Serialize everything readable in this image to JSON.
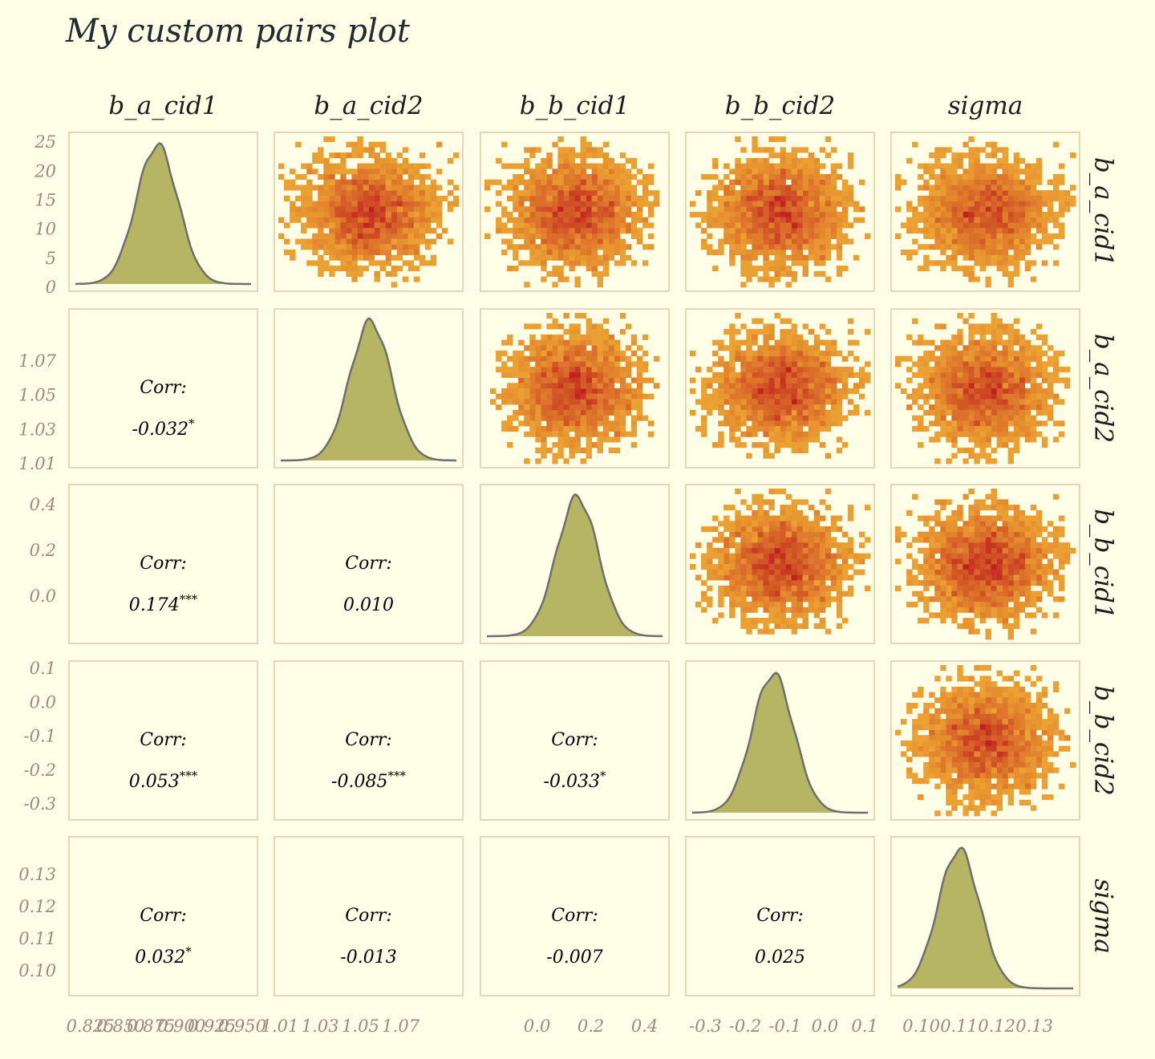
{
  "chart_data": {
    "type": "pairs",
    "title": "My custom pairs plot",
    "variables": [
      "b_a_cid1",
      "b_a_cid2",
      "b_b_cid1",
      "b_b_cid2",
      "sigma"
    ],
    "colors": {
      "background": "#fffee6",
      "panel_border": "#e6d7bc",
      "density_fill": "#b6b563",
      "density_line": "#6e6e6e",
      "hex_low": "#f0ae34",
      "hex_high": "#c0201e",
      "tick_text": "#9b8c79"
    },
    "diagonal": {
      "type": "density",
      "y_tick_labels_first_panel": [
        "0",
        "5",
        "10",
        "15",
        "20",
        "25"
      ],
      "density_peak": [
        25,
        1.078,
        0.42,
        0.11,
        0.138
      ],
      "density_modes": [
        0.88,
        1.055,
        0.15,
        -0.13,
        0.11
      ]
    },
    "upper": {
      "type": "2d-histogram",
      "centers_x": [
        [
          null,
          1.052,
          0.145,
          -0.13,
          0.111
        ],
        [
          null,
          null,
          0.155,
          -0.135,
          0.11
        ],
        [
          null,
          null,
          null,
          -0.14,
          0.11
        ],
        [
          null,
          null,
          null,
          null,
          0.11
        ]
      ],
      "centers_y": [
        [
          null,
          0.88,
          0.88,
          0.88,
          0.88
        ],
        [
          null,
          null,
          1.05,
          1.05,
          1.05
        ],
        [
          null,
          null,
          null,
          0.15,
          0.15
        ],
        [
          null,
          null,
          null,
          null,
          -0.12
        ]
      ],
      "spread_x": [
        [
          null,
          0.013,
          0.09,
          0.09,
          0.0065
        ],
        [
          null,
          null,
          0.09,
          0.09,
          0.0065
        ],
        [
          null,
          null,
          null,
          0.09,
          0.0065
        ],
        [
          null,
          null,
          null,
          null,
          0.0065
        ]
      ],
      "spread_y": [
        [
          null,
          0.028,
          0.028,
          0.028,
          0.028
        ],
        [
          null,
          null,
          0.01,
          0.01,
          0.01
        ],
        [
          null,
          null,
          null,
          0.09,
          0.09
        ],
        [
          null,
          null,
          null,
          null,
          0.07
        ]
      ]
    },
    "lower": {
      "type": "correlation",
      "label": "Corr:",
      "cells": [
        {
          "row": 1,
          "col": 0,
          "value": "-0.032",
          "stars": "*"
        },
        {
          "row": 2,
          "col": 0,
          "value": "0.174",
          "stars": "***"
        },
        {
          "row": 2,
          "col": 1,
          "value": "0.010",
          "stars": ""
        },
        {
          "row": 3,
          "col": 0,
          "value": "0.053",
          "stars": "***"
        },
        {
          "row": 3,
          "col": 1,
          "value": "-0.085",
          "stars": "***"
        },
        {
          "row": 3,
          "col": 2,
          "value": "-0.033",
          "stars": "*"
        },
        {
          "row": 4,
          "col": 0,
          "value": "0.032",
          "stars": "*"
        },
        {
          "row": 4,
          "col": 1,
          "value": "-0.013",
          "stars": ""
        },
        {
          "row": 4,
          "col": 2,
          "value": "-0.007",
          "stars": ""
        },
        {
          "row": 4,
          "col": 3,
          "value": "0.025",
          "stars": ""
        }
      ]
    },
    "axes": [
      {
        "name": "b_a_cid1",
        "range": [
          0.812,
          0.958
        ],
        "x_ticks": [
          "0.825",
          "0.850",
          "0.875",
          "0.900",
          "0.925",
          "0.950"
        ],
        "x_tick_values": [
          0.825,
          0.85,
          0.875,
          0.9,
          0.925,
          0.95
        ],
        "y_ticks": []
      },
      {
        "name": "b_a_cid2",
        "range": [
          1.01,
          1.098
        ],
        "x_ticks": [
          "1.01",
          "1.03",
          "1.05",
          "1.07"
        ],
        "x_tick_values": [
          1.01,
          1.03,
          1.05,
          1.07
        ],
        "y_ticks": [
          "1.01",
          "1.03",
          "1.05",
          "1.07"
        ],
        "y_tick_values": [
          1.01,
          1.03,
          1.05,
          1.07
        ]
      },
      {
        "name": "b_b_cid1",
        "range": [
          -0.19,
          0.47
        ],
        "x_ticks": [
          "0.0",
          "0.2",
          "0.4"
        ],
        "x_tick_values": [
          0.0,
          0.2,
          0.4
        ],
        "y_ticks": [
          "0.0",
          "0.2",
          "0.4"
        ],
        "y_tick_values": [
          0.0,
          0.2,
          0.4
        ]
      },
      {
        "name": "b_b_cid2",
        "range": [
          -0.335,
          0.11
        ],
        "x_ticks": [
          "-0.3",
          "-0.2",
          "-0.1",
          "0.0",
          "0.1"
        ],
        "x_tick_values": [
          -0.3,
          -0.2,
          -0.1,
          0.0,
          0.1
        ],
        "y_ticks": [
          "-0.3",
          "-0.2",
          "-0.1",
          "0.0",
          "0.1"
        ],
        "y_tick_values": [
          -0.3,
          -0.2,
          -0.1,
          0.0,
          0.1
        ]
      },
      {
        "name": "sigma",
        "range": [
          0.0935,
          0.1405
        ],
        "x_ticks": [
          "0.10",
          "0.11",
          "0.12",
          "0.13"
        ],
        "x_tick_values": [
          0.1,
          0.11,
          0.12,
          0.13
        ],
        "y_ticks": [
          "0.10",
          "0.11",
          "0.12",
          "0.13"
        ],
        "y_tick_values": [
          0.1,
          0.11,
          0.12,
          0.13
        ]
      }
    ],
    "first_panel_y_range": [
      0,
      26
    ],
    "grid": false,
    "legend": "none"
  }
}
